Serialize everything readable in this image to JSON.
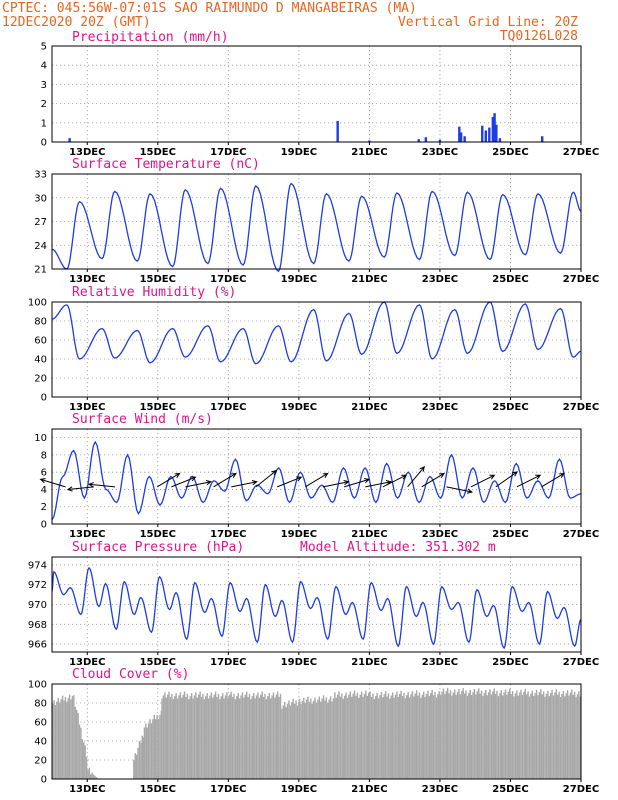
{
  "header": {
    "line1_left": "CPTEC:  045:56W-07:01S  SAO RAIMUNDO D MANGABEIRAS (MA)",
    "line2_left": "12DEC2020 20Z (GMT)",
    "line2_right": "Vertical Grid Line: 20Z",
    "line3_right": "TQ0126L028"
  },
  "colors": {
    "header": "#e8651e",
    "title": "#e0148c",
    "series": "#1e3ce6",
    "cloud": "#a8a8a8"
  },
  "chart_data": [
    {
      "type": "bar",
      "title": "Precipitation (mm/h)",
      "yticks": [
        0,
        1,
        2,
        3,
        4,
        5
      ],
      "ylim": [
        0,
        5
      ],
      "grid": true,
      "xticks": [
        "13DEC",
        "15DEC",
        "17DEC",
        "19DEC",
        "21DEC",
        "23DEC",
        "25DEC",
        "27DEC"
      ],
      "xlim": [
        0,
        15
      ],
      "xtick_positions": [
        1,
        3,
        5,
        7,
        9,
        11,
        13,
        15
      ],
      "bars": [
        {
          "x": 0.5,
          "y": 0.2
        },
        {
          "x": 8.1,
          "y": 1.1
        },
        {
          "x": 9.0,
          "y": 0.08
        },
        {
          "x": 10.4,
          "y": 0.15
        },
        {
          "x": 10.6,
          "y": 0.25
        },
        {
          "x": 11.0,
          "y": 0.12
        },
        {
          "x": 11.55,
          "y": 0.8
        },
        {
          "x": 11.6,
          "y": 0.5
        },
        {
          "x": 11.7,
          "y": 0.3
        },
        {
          "x": 12.2,
          "y": 0.85
        },
        {
          "x": 12.3,
          "y": 0.6
        },
        {
          "x": 12.4,
          "y": 0.75
        },
        {
          "x": 12.5,
          "y": 1.3
        },
        {
          "x": 12.55,
          "y": 1.5
        },
        {
          "x": 12.6,
          "y": 0.9
        },
        {
          "x": 12.7,
          "y": 0.2
        },
        {
          "x": 13.9,
          "y": 0.3
        }
      ]
    },
    {
      "type": "line",
      "title": "Surface Temperature (nC)",
      "yticks": [
        21,
        24,
        27,
        30,
        33
      ],
      "ylim": [
        21,
        33
      ],
      "grid": true,
      "xticks": [
        "13DEC",
        "15DEC",
        "17DEC",
        "19DEC",
        "21DEC",
        "23DEC",
        "25DEC",
        "27DEC"
      ],
      "xlim": [
        0,
        15
      ],
      "xtick_positions": [
        1,
        3,
        5,
        7,
        9,
        11,
        13,
        15
      ],
      "max": [
        29.5,
        30.8,
        30.5,
        31,
        31.2,
        31.5,
        31.8,
        30.5,
        30.2,
        30.6,
        30.8,
        30.7,
        30.4,
        30.5,
        30.7
      ],
      "min": [
        21.0,
        22.3,
        22.0,
        21.3,
        21.7,
        21.5,
        20.7,
        21.7,
        22.0,
        22.5,
        22.2,
        22.7,
        22.2,
        22.8,
        23.0
      ],
      "start": 23.5,
      "end": 28.3
    },
    {
      "type": "line",
      "title": "Relative Humidity (%)",
      "yticks": [
        0,
        20,
        40,
        60,
        80,
        100
      ],
      "ylim": [
        0,
        100
      ],
      "grid": true,
      "xticks": [
        "13DEC",
        "15DEC",
        "17DEC",
        "19DEC",
        "21DEC",
        "23DEC",
        "25DEC",
        "27DEC"
      ],
      "xlim": [
        0,
        15
      ],
      "xtick_positions": [
        1,
        3,
        5,
        7,
        9,
        11,
        13,
        15
      ],
      "max": [
        97,
        72,
        70,
        72,
        75,
        72,
        75,
        92,
        88,
        100,
        97,
        92,
        100,
        98,
        93
      ],
      "min": [
        40,
        41,
        36,
        42,
        37,
        35,
        37,
        38,
        45,
        46,
        40,
        46,
        48,
        50,
        42
      ],
      "start": 82,
      "end": 48
    },
    {
      "type": "line",
      "title": "Surface Wind (m/s)",
      "yticks": [
        0,
        2,
        4,
        6,
        8,
        10
      ],
      "ylim": [
        0,
        11
      ],
      "grid": true,
      "xticks": [
        "13DEC",
        "15DEC",
        "17DEC",
        "19DEC",
        "21DEC",
        "23DEC",
        "25DEC",
        "27DEC"
      ],
      "xlim": [
        0,
        15
      ],
      "xtick_positions": [
        1,
        3,
        5,
        7,
        9,
        11,
        13,
        15
      ],
      "speed": [
        0.5,
        5.5,
        8.5,
        3.0,
        9.5,
        4.0,
        2.5,
        8.0,
        1.2,
        5.5,
        2.2,
        5.5,
        3.0,
        5.5,
        2.5,
        5.0,
        3.8,
        7.5,
        2.7,
        4.5,
        3.5,
        6.5,
        2.5,
        6.0,
        3.0,
        4.5,
        2.5,
        6.5,
        3.0,
        6.5,
        2.5,
        7.0,
        3.0,
        6.0,
        2.5,
        5.5,
        3.0,
        8.0,
        3.0,
        6.5,
        2.5,
        5.0,
        2.5,
        7.0,
        3.0,
        5.0,
        3.0,
        7.5,
        3.0,
        3.5
      ],
      "arrows": [
        {
          "x": 0.1,
          "u": -1,
          "v": 0.3
        },
        {
          "x": 0.9,
          "u": -1,
          "v": -0.1
        },
        {
          "x": 1.5,
          "u": -1,
          "v": 0.1
        },
        {
          "x": 2.7,
          "u": 1,
          "v": 0.6
        },
        {
          "x": 3.1,
          "u": 1,
          "v": 0.4
        },
        {
          "x": 3.5,
          "u": 1,
          "v": 0.2
        },
        {
          "x": 4.3,
          "u": 1,
          "v": 0.6
        },
        {
          "x": 4.8,
          "u": 1,
          "v": 0.2
        },
        {
          "x": 5.5,
          "u": 1,
          "v": 0.8
        },
        {
          "x": 6.1,
          "u": 1,
          "v": 0.4
        },
        {
          "x": 6.9,
          "u": 1,
          "v": 0.6
        },
        {
          "x": 7.4,
          "u": 1,
          "v": 0.2
        },
        {
          "x": 8.0,
          "u": 1,
          "v": 0.3
        },
        {
          "x": 8.6,
          "u": 1,
          "v": 0.2
        },
        {
          "x": 9.1,
          "u": 1,
          "v": 0.5
        },
        {
          "x": 9.8,
          "u": 1,
          "v": 1.2
        },
        {
          "x": 10.2,
          "u": 1,
          "v": 0.6
        },
        {
          "x": 10.9,
          "u": 1,
          "v": -0.2
        },
        {
          "x": 11.6,
          "u": 1,
          "v": 0.5
        },
        {
          "x": 12.3,
          "u": 1,
          "v": 0.7
        },
        {
          "x": 12.9,
          "u": 1,
          "v": 0.5
        },
        {
          "x": 13.6,
          "u": 1,
          "v": 0.6
        }
      ]
    },
    {
      "type": "line",
      "title": "Surface Pressure (hPa)",
      "annotation": "Model Altitude: 351.302 m",
      "yticks": [
        966,
        968,
        970,
        972,
        974
      ],
      "ylim": [
        965.2,
        974.8
      ],
      "grid": true,
      "xticks": [
        "13DEC",
        "15DEC",
        "17DEC",
        "19DEC",
        "21DEC",
        "23DEC",
        "25DEC",
        "27DEC"
      ],
      "xlim": [
        0,
        15
      ],
      "xtick_positions": [
        1,
        3,
        5,
        7,
        9,
        11,
        13,
        15
      ],
      "highs": [
        973.3,
        973.7,
        972.3,
        972.8,
        972.2,
        972.2,
        972.0,
        972.3,
        971.8,
        972.2,
        971.8,
        971.8,
        971.5,
        971.8,
        971.3
      ],
      "lows": [
        969.0,
        967.5,
        967.2,
        966.5,
        966.8,
        966.2,
        966.2,
        966.5,
        966.5,
        965.8,
        966.0,
        966.2,
        965.6,
        966.0,
        965.8
      ],
      "mids": [
        971.0,
        969.8,
        969.0,
        969.5,
        969.2,
        969.3,
        968.8,
        969.6,
        969.0,
        969.4,
        968.8,
        969.5,
        968.8,
        969.3,
        968.6
      ],
      "start": 971.3,
      "end": 968.5
    },
    {
      "type": "area",
      "title": "Cloud Cover (%)",
      "yticks": [
        0,
        20,
        40,
        60,
        80,
        100
      ],
      "ylim": [
        0,
        100
      ],
      "grid": true,
      "xticks": [
        "13DEC",
        "15DEC",
        "17DEC",
        "19DEC",
        "21DEC",
        "23DEC",
        "25DEC",
        "27DEC"
      ],
      "xlim": [
        0,
        15
      ],
      "xtick_positions": [
        1,
        3,
        5,
        7,
        9,
        11,
        13,
        15
      ],
      "segments": [
        {
          "x0": 0.0,
          "x1": 0.6,
          "y0": 80,
          "y1": 88
        },
        {
          "x0": 0.6,
          "x1": 1.0,
          "y0": 85,
          "y1": 20
        },
        {
          "x0": 1.0,
          "x1": 1.3,
          "y0": 10,
          "y1": 0
        },
        {
          "x0": 1.3,
          "x1": 2.3,
          "y0": 0,
          "y1": 0
        },
        {
          "x0": 2.3,
          "x1": 2.6,
          "y0": 20,
          "y1": 50
        },
        {
          "x0": 2.6,
          "x1": 3.1,
          "y0": 55,
          "y1": 70
        },
        {
          "x0": 3.1,
          "x1": 6.5,
          "y0": 88,
          "y1": 88
        },
        {
          "x0": 6.5,
          "x1": 7.0,
          "y0": 78,
          "y1": 82
        },
        {
          "x0": 7.0,
          "x1": 8.0,
          "y0": 82,
          "y1": 85
        },
        {
          "x0": 8.0,
          "x1": 9.0,
          "y0": 88,
          "y1": 90
        },
        {
          "x0": 9.0,
          "x1": 11.0,
          "y0": 88,
          "y1": 90
        },
        {
          "x0": 11.0,
          "x1": 15.0,
          "y0": 92,
          "y1": 90
        }
      ]
    }
  ]
}
